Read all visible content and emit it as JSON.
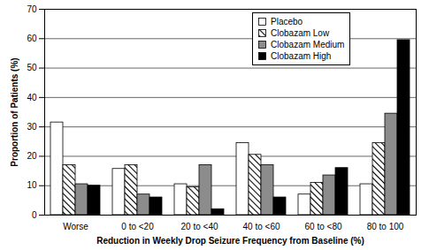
{
  "chart_data": {
    "type": "bar",
    "categories": [
      "Worse",
      "0 to <20",
      "20 to <40",
      "40 to <60",
      "60 to <80",
      "80 to 100"
    ],
    "series": [
      {
        "name": "Placebo",
        "color": "#ffffff",
        "values": [
          31.5,
          15.7,
          10.5,
          24.5,
          7,
          10.5
        ]
      },
      {
        "name": "Clobazam Low",
        "color": "hatched",
        "values": [
          17,
          17,
          9.5,
          20.5,
          11,
          24.5
        ]
      },
      {
        "name": "Clobazam Medium",
        "color": "#8c8c8c",
        "values": [
          10.5,
          7,
          17,
          17,
          13.5,
          34.5
        ]
      },
      {
        "name": "Clobazam High",
        "color": "#000000",
        "values": [
          10,
          6,
          2,
          6,
          16,
          59.5
        ]
      }
    ],
    "xlabel": "Reduction in Weekly Drop Seizure Frequency from Baseline (%)",
    "ylabel": "Proportion of Patients (%)",
    "ylim": [
      0,
      70
    ],
    "yticks": [
      0,
      10,
      20,
      30,
      40,
      50,
      60,
      70
    ],
    "grid": true,
    "legend": "upper right"
  }
}
